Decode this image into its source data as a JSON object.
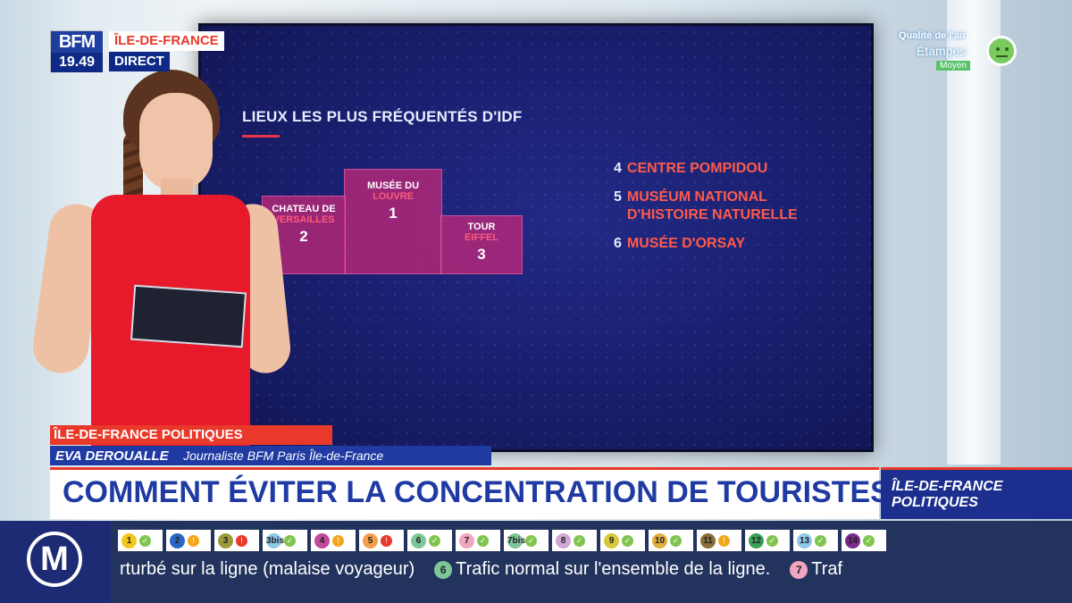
{
  "broadcast": {
    "logo": "BFM",
    "time": "19.49",
    "region": "ÎLE-DE-FRANCE",
    "live_label": "DIRECT"
  },
  "air_quality": {
    "title": "Qualité de l'air",
    "city": "Étampes",
    "level": "Moyen"
  },
  "screen": {
    "title": "LIEUX LES PLUS FRÉQUENTÉS D'IDF",
    "podium": [
      {
        "name": "MUSÉE DU",
        "sub": "LOUVRE",
        "rank": "1"
      },
      {
        "name": "CHATEAU DE",
        "sub": "VERSAILLES",
        "rank": "2"
      },
      {
        "name": "TOUR",
        "sub": "EIFFEL",
        "rank": "3"
      }
    ],
    "ranking": [
      {
        "num": "4",
        "name": "CENTRE POMPIDOU"
      },
      {
        "num": "5",
        "name": "MUSÉUM NATIONAL\nD'HISTOIRE NATURELLE"
      },
      {
        "num": "6",
        "name": "MUSÉE D'ORSAY"
      }
    ]
  },
  "lower_third": {
    "show": "ÎLE-DE-FRANCE POLITIQUES",
    "name": "EVA DEROUALLE",
    "role": "Journaliste BFM Paris Île-de-France",
    "headline": "COMMENT ÉVITER LA CONCENTRATION DE TOURISTES ?",
    "side": "ÎLE-DE-FRANCE\nPOLITIQUES"
  },
  "ticker": {
    "network_symbol": "M",
    "lines": [
      {
        "num": "1",
        "color": "#f2c81d",
        "status": "ok"
      },
      {
        "num": "2",
        "color": "#2a66c4",
        "status": "warn"
      },
      {
        "num": "3",
        "color": "#9e9a3a",
        "status": "alert"
      },
      {
        "num": "3bis",
        "color": "#8ec9e8",
        "status": "ok"
      },
      {
        "num": "4",
        "color": "#c24a9a",
        "status": "warn"
      },
      {
        "num": "5",
        "color": "#f29e4c",
        "status": "alert"
      },
      {
        "num": "6",
        "color": "#7fc59a",
        "status": "ok"
      },
      {
        "num": "7",
        "color": "#f1a6c0",
        "status": "ok"
      },
      {
        "num": "7bis",
        "color": "#7fc59a",
        "status": "ok"
      },
      {
        "num": "8",
        "color": "#d0a8d4",
        "status": "ok"
      },
      {
        "num": "9",
        "color": "#d6c93c",
        "status": "ok"
      },
      {
        "num": "10",
        "color": "#e0b03c",
        "status": "ok"
      },
      {
        "num": "11",
        "color": "#8b6c3a",
        "status": "warn"
      },
      {
        "num": "12",
        "color": "#3aa35a",
        "status": "ok"
      },
      {
        "num": "13",
        "color": "#8ec9e8",
        "status": "ok"
      },
      {
        "num": "14",
        "color": "#7a2a8a",
        "status": "ok"
      }
    ],
    "messages": [
      {
        "line": "",
        "text": "rturbé sur la ligne (malaise voyageur)"
      },
      {
        "line": "6",
        "text": "Trafic normal sur l'ensemble de la ligne."
      },
      {
        "line": "7",
        "text": "Traf"
      }
    ]
  }
}
